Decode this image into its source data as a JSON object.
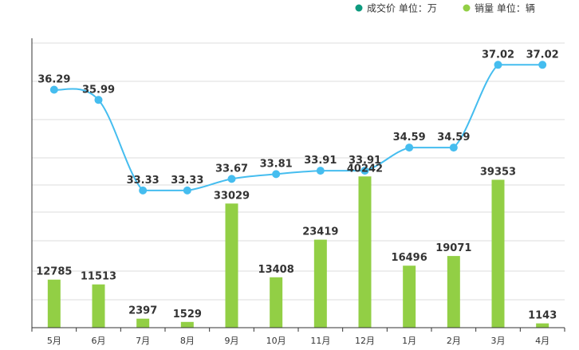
{
  "legend": [
    {
      "label": "成交价  单位：万",
      "color": "#0e9a7f"
    },
    {
      "label": "销量  单位：辆",
      "color": "#92cf45"
    }
  ],
  "colors": {
    "bar": "#92cf45",
    "line": "#45bdef",
    "grid": "#dddddd",
    "axis": "#333333"
  },
  "chart_data": {
    "type": "bar+line",
    "categories": [
      "5月",
      "6月",
      "7月",
      "8月",
      "9月",
      "10月",
      "11月",
      "12月",
      "1月",
      "2月",
      "3月",
      "4月"
    ],
    "series": [
      {
        "name": "销量",
        "unit": "辆",
        "type": "bar",
        "values": [
          12785,
          11513,
          2397,
          1529,
          33029,
          13408,
          23419,
          40242,
          16496,
          19071,
          39353,
          1143
        ]
      },
      {
        "name": "成交价",
        "unit": "万",
        "type": "line",
        "values": [
          36.29,
          35.99,
          33.33,
          33.33,
          33.67,
          33.81,
          33.91,
          33.91,
          34.59,
          34.59,
          37.02,
          37.02
        ]
      }
    ],
    "grid": true,
    "legend_position": "top-right"
  }
}
